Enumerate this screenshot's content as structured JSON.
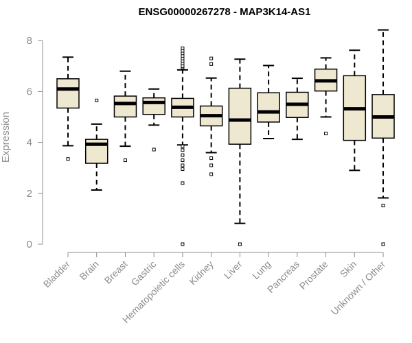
{
  "chart_data": {
    "type": "boxplot",
    "title": "ENSG00000267278 - MAP3K14-AS1",
    "xlabel": "",
    "ylabel": "Expression",
    "ylim": [
      0,
      8.4
    ],
    "yticks": [
      0,
      2,
      4,
      6,
      8
    ],
    "box_color": "#efe8d0",
    "categories": [
      "Bladder",
      "Brain",
      "Breast",
      "Gastric",
      "Hematopoietic cells",
      "Kidney",
      "Liver",
      "Lung",
      "Pancreas",
      "Prostate",
      "Skin",
      "Unknown / Other"
    ],
    "boxes": [
      {
        "whisker_low": 3.87,
        "q1": 5.35,
        "median": 6.1,
        "q3": 6.5,
        "whisker_high": 7.35,
        "outliers": [
          3.35
        ]
      },
      {
        "whisker_low": 2.13,
        "q1": 3.18,
        "median": 3.93,
        "q3": 4.12,
        "whisker_high": 4.72,
        "outliers": [
          5.65
        ]
      },
      {
        "whisker_low": 3.85,
        "q1": 5.0,
        "median": 5.53,
        "q3": 5.82,
        "whisker_high": 6.8,
        "outliers": [
          3.3
        ]
      },
      {
        "whisker_low": 4.68,
        "q1": 5.1,
        "median": 5.57,
        "q3": 5.75,
        "whisker_high": 6.1,
        "outliers": [
          3.72
        ]
      },
      {
        "whisker_low": 3.9,
        "q1": 5.0,
        "median": 5.38,
        "q3": 5.73,
        "whisker_high": 6.85,
        "outliers": [
          6.95,
          7.0,
          7.1,
          7.2,
          7.3,
          7.4,
          7.5,
          7.6,
          7.7,
          3.85,
          3.7,
          3.5,
          3.3,
          3.1,
          2.95,
          2.4,
          0.0
        ]
      },
      {
        "whisker_low": 3.6,
        "q1": 4.65,
        "median": 5.05,
        "q3": 5.43,
        "whisker_high": 6.53,
        "outliers": [
          7.08,
          7.3,
          3.38,
          3.1,
          2.75
        ]
      },
      {
        "whisker_low": 0.82,
        "q1": 3.93,
        "median": 4.88,
        "q3": 6.13,
        "whisker_high": 7.27,
        "outliers": [
          0.0
        ]
      },
      {
        "whisker_low": 4.15,
        "q1": 4.8,
        "median": 5.2,
        "q3": 5.95,
        "whisker_high": 7.02,
        "outliers": []
      },
      {
        "whisker_low": 4.12,
        "q1": 4.98,
        "median": 5.5,
        "q3": 5.97,
        "whisker_high": 6.52,
        "outliers": []
      },
      {
        "whisker_low": 5.0,
        "q1": 6.02,
        "median": 6.42,
        "q3": 6.88,
        "whisker_high": 7.32,
        "outliers": [
          4.35
        ]
      },
      {
        "whisker_low": 2.9,
        "q1": 4.08,
        "median": 5.32,
        "q3": 6.62,
        "whisker_high": 7.62,
        "outliers": []
      },
      {
        "whisker_low": 1.82,
        "q1": 4.17,
        "median": 5.0,
        "q3": 5.88,
        "whisker_high": 8.42,
        "outliers": [
          1.52,
          0.0
        ]
      }
    ]
  }
}
